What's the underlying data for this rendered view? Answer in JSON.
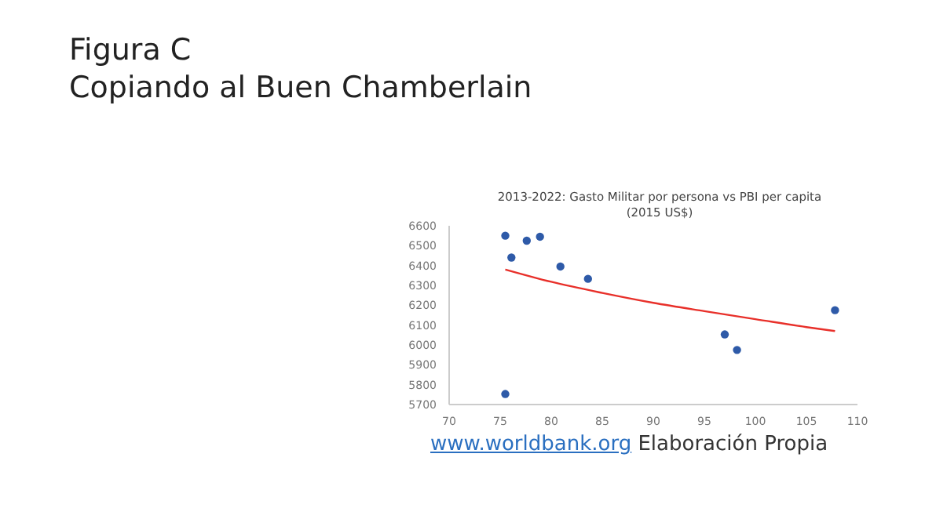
{
  "chart_data": {
    "type": "scatter",
    "title": "2013-2022: Gasto Militar por persona vs PBI per capita",
    "subtitle": "(2015 US$)",
    "annotations": [
      "Figura C",
      "Copiando al Buen Chamberlain",
      "www.worldbank.org",
      "Elaboración Propia"
    ],
    "x": [
      75.5,
      76.1,
      77.6,
      78.9,
      80.9,
      83.6,
      97.0,
      98.2,
      107.8,
      75.5
    ],
    "series": [
      {
        "color": "#2e5aa8",
        "values": [
          6550,
          6440,
          6525,
          6545,
          6395,
          6333,
          6053,
          5975,
          6175,
          5753
        ]
      },
      {
        "type": "line",
        "marker": "none",
        "color": "#e8302a",
        "x": [
          75.5,
          80,
          85,
          90,
          95,
          100,
          105,
          107.8
        ],
        "values": [
          6380,
          6318,
          6262,
          6212,
          6170,
          6130,
          6090,
          6070
        ]
      }
    ],
    "xlim": [
      70,
      110
    ],
    "xticks": [
      70,
      75,
      80,
      85,
      90,
      95,
      100,
      105,
      110
    ],
    "ylim": [
      5700,
      6600
    ],
    "yticks": [
      5700,
      5800,
      5900,
      6000,
      6100,
      6200,
      6300,
      6400,
      6500,
      6600
    ],
    "grid": false,
    "legend": false,
    "marker": "circle"
  }
}
